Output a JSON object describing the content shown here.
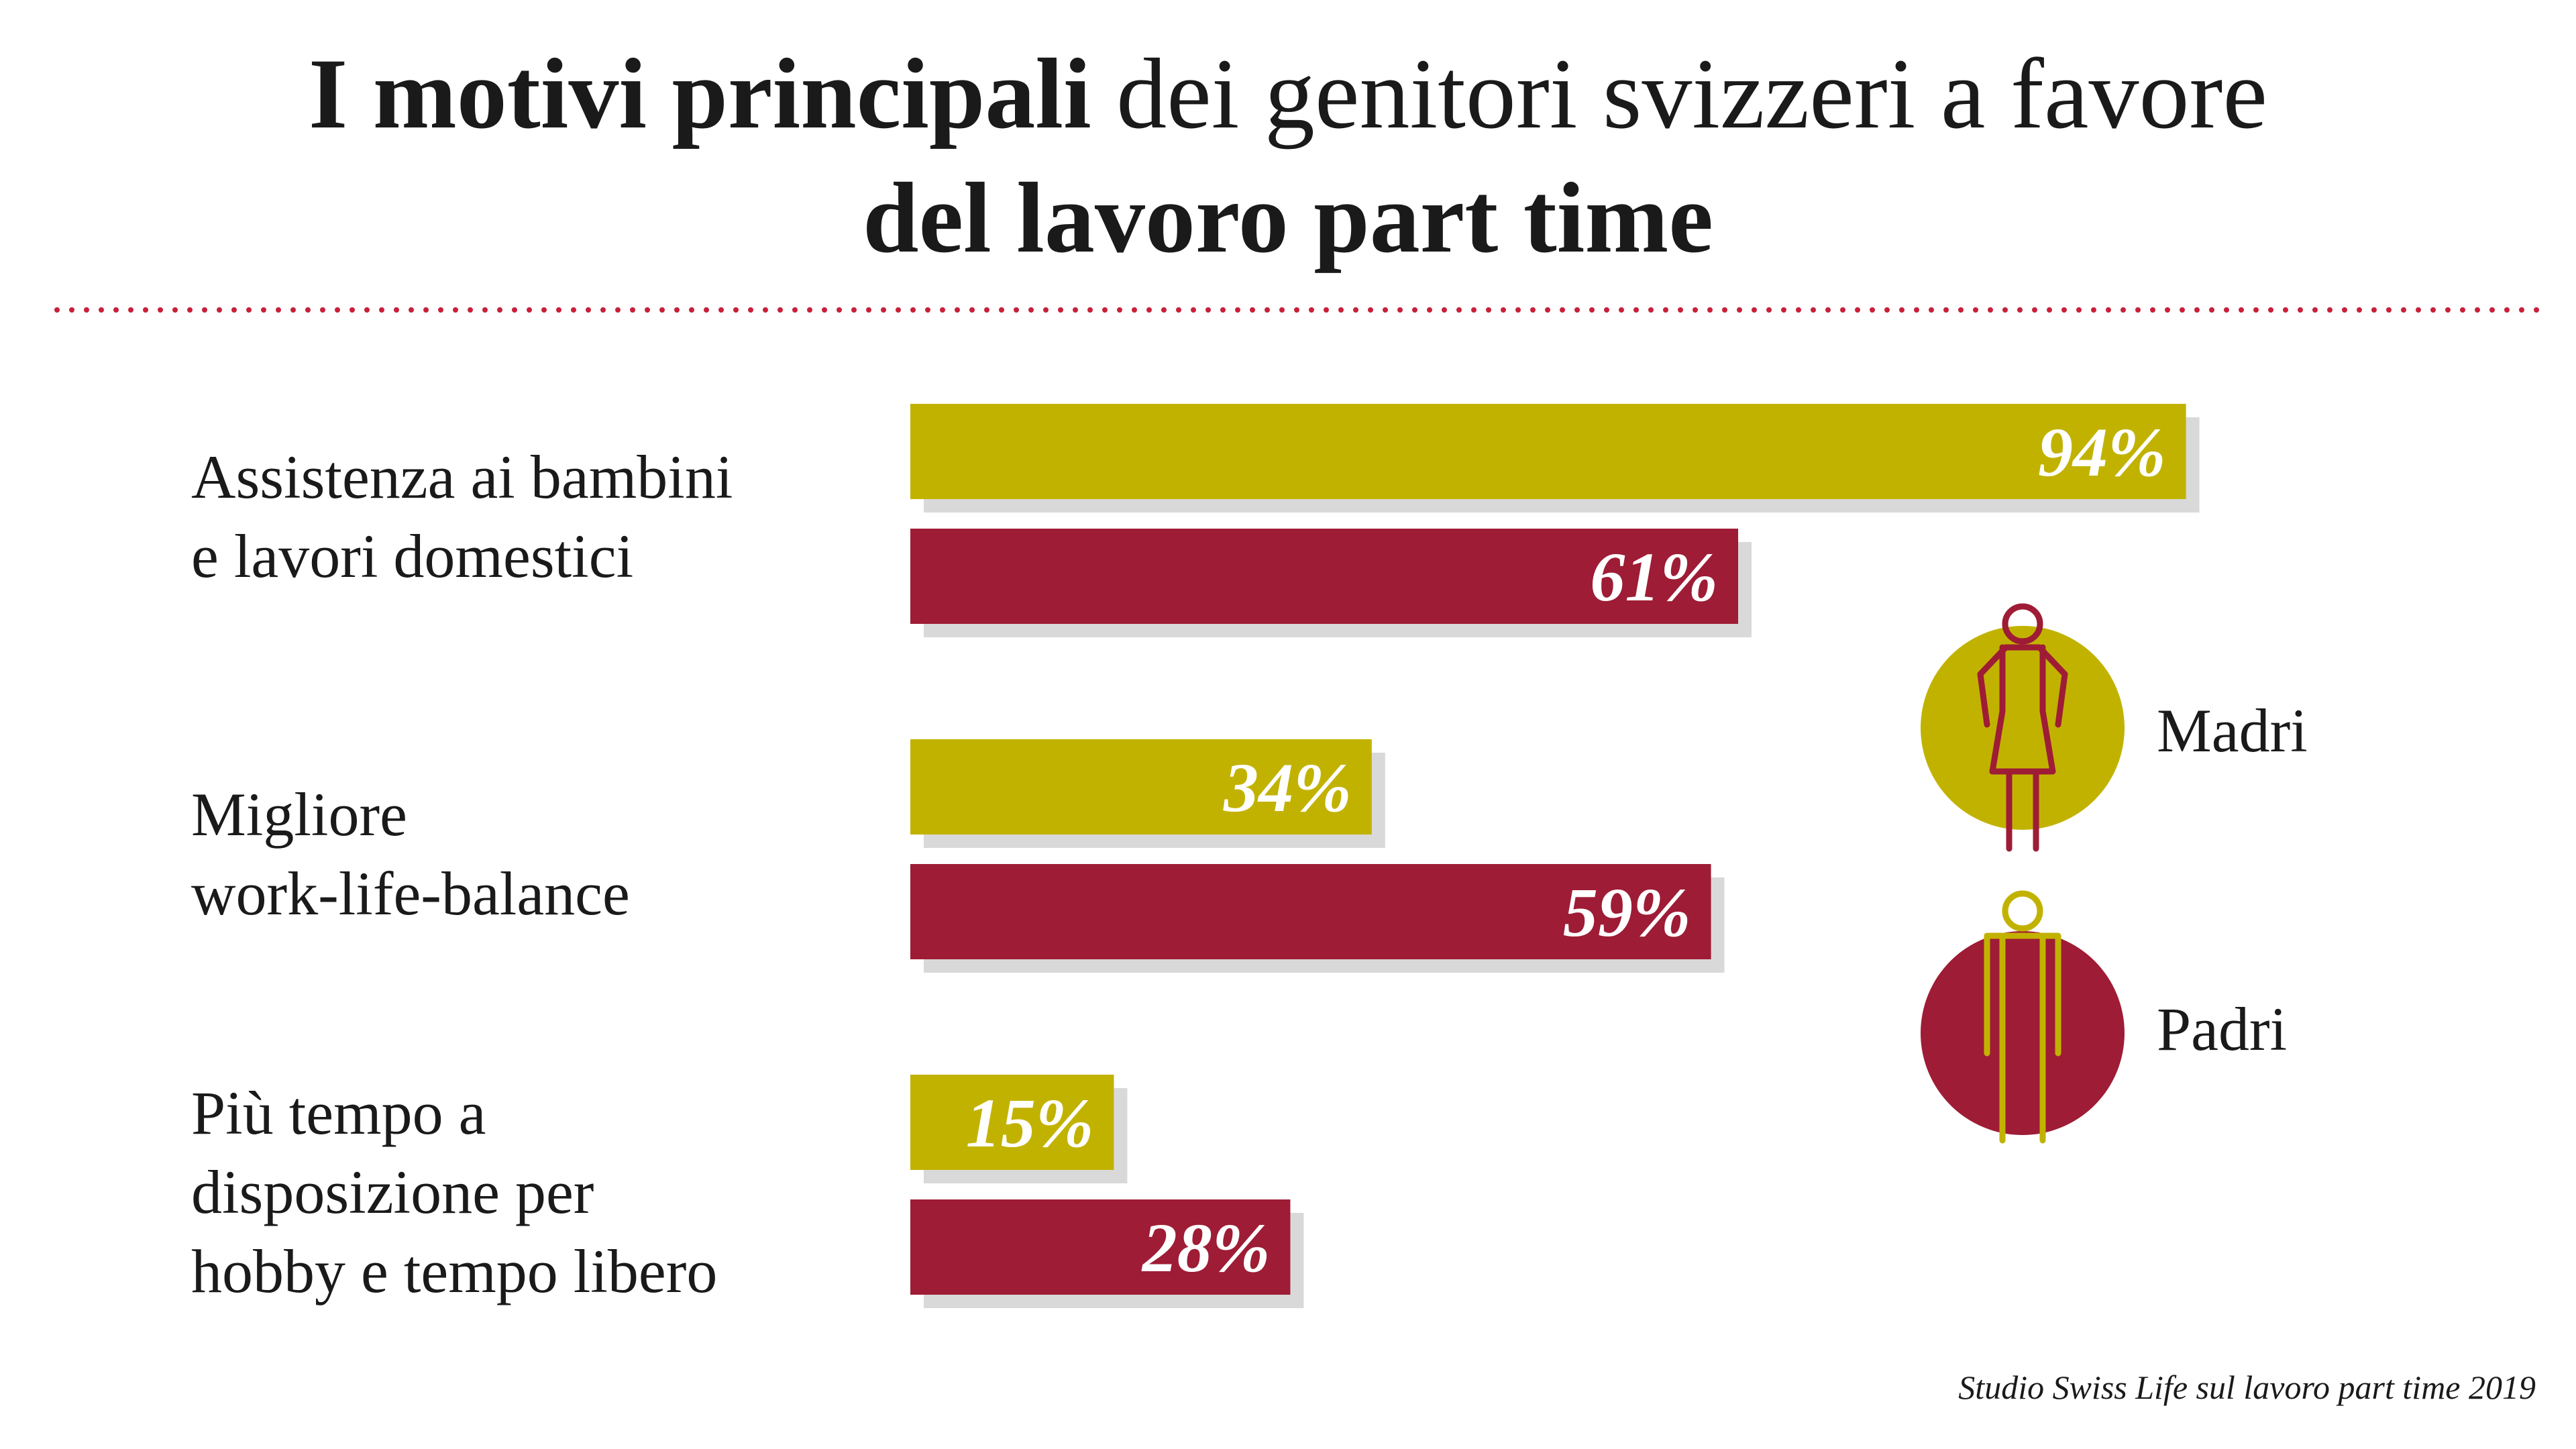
{
  "title": {
    "line1_bold": "I motivi principali",
    "line1_regular": " dei genitori svizzeri a favore",
    "line2_bold": "del lavoro part time"
  },
  "colors": {
    "madri": "#c2b200",
    "padri": "#9e1c35",
    "shadow": "#d9d9d9",
    "divider": "#c8203a",
    "text": "#1a1a1a"
  },
  "chart_data": {
    "type": "bar",
    "orientation": "horizontal",
    "categories": [
      "Assistenza ai bambini e lavori domestici",
      "Migliore work-life-balance",
      "Più tempo a disposizione per hobby e tempo libero"
    ],
    "category_lines": [
      [
        "Assistenza ai bambini",
        "e lavori domestici"
      ],
      [
        "Migliore",
        "work-life-balance"
      ],
      [
        "Più tempo a",
        "disposizione per",
        "hobby e tempo libero"
      ]
    ],
    "series": [
      {
        "name": "Madri",
        "values": [
          94,
          34,
          15
        ],
        "labels": [
          "94%",
          "34%",
          "15%"
        ]
      },
      {
        "name": "Padri",
        "values": [
          61,
          59,
          28
        ],
        "labels": [
          "61%",
          "59%",
          "28%"
        ]
      }
    ],
    "xlim": [
      0,
      100
    ],
    "unit": "%",
    "grid": false,
    "legend_position": "right"
  },
  "legend": {
    "madri_icon": "woman-icon",
    "padri_icon": "man-icon"
  },
  "source": "Studio Swiss Life sul lavoro part time 2019"
}
